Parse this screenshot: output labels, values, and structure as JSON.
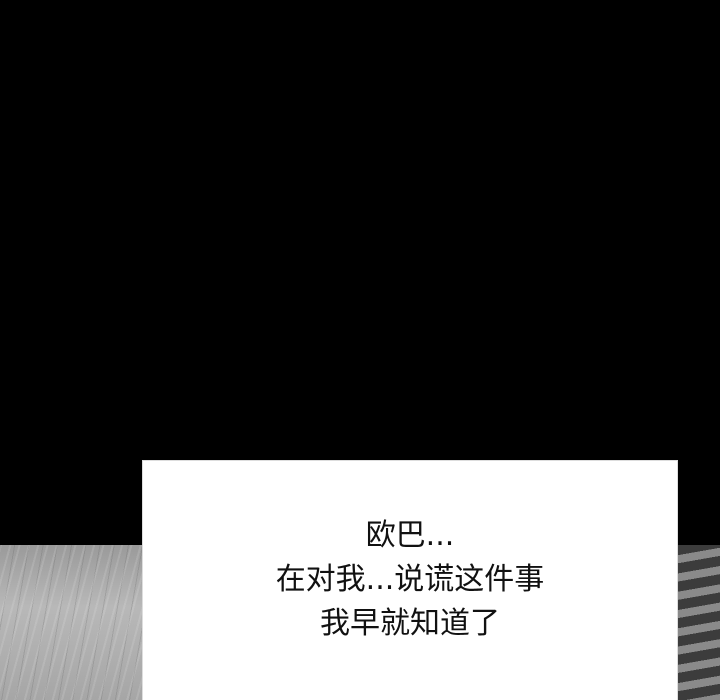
{
  "caption": {
    "lines": [
      "欧巴...",
      "在对我...说谎这件事",
      "我早就知道了"
    ]
  }
}
